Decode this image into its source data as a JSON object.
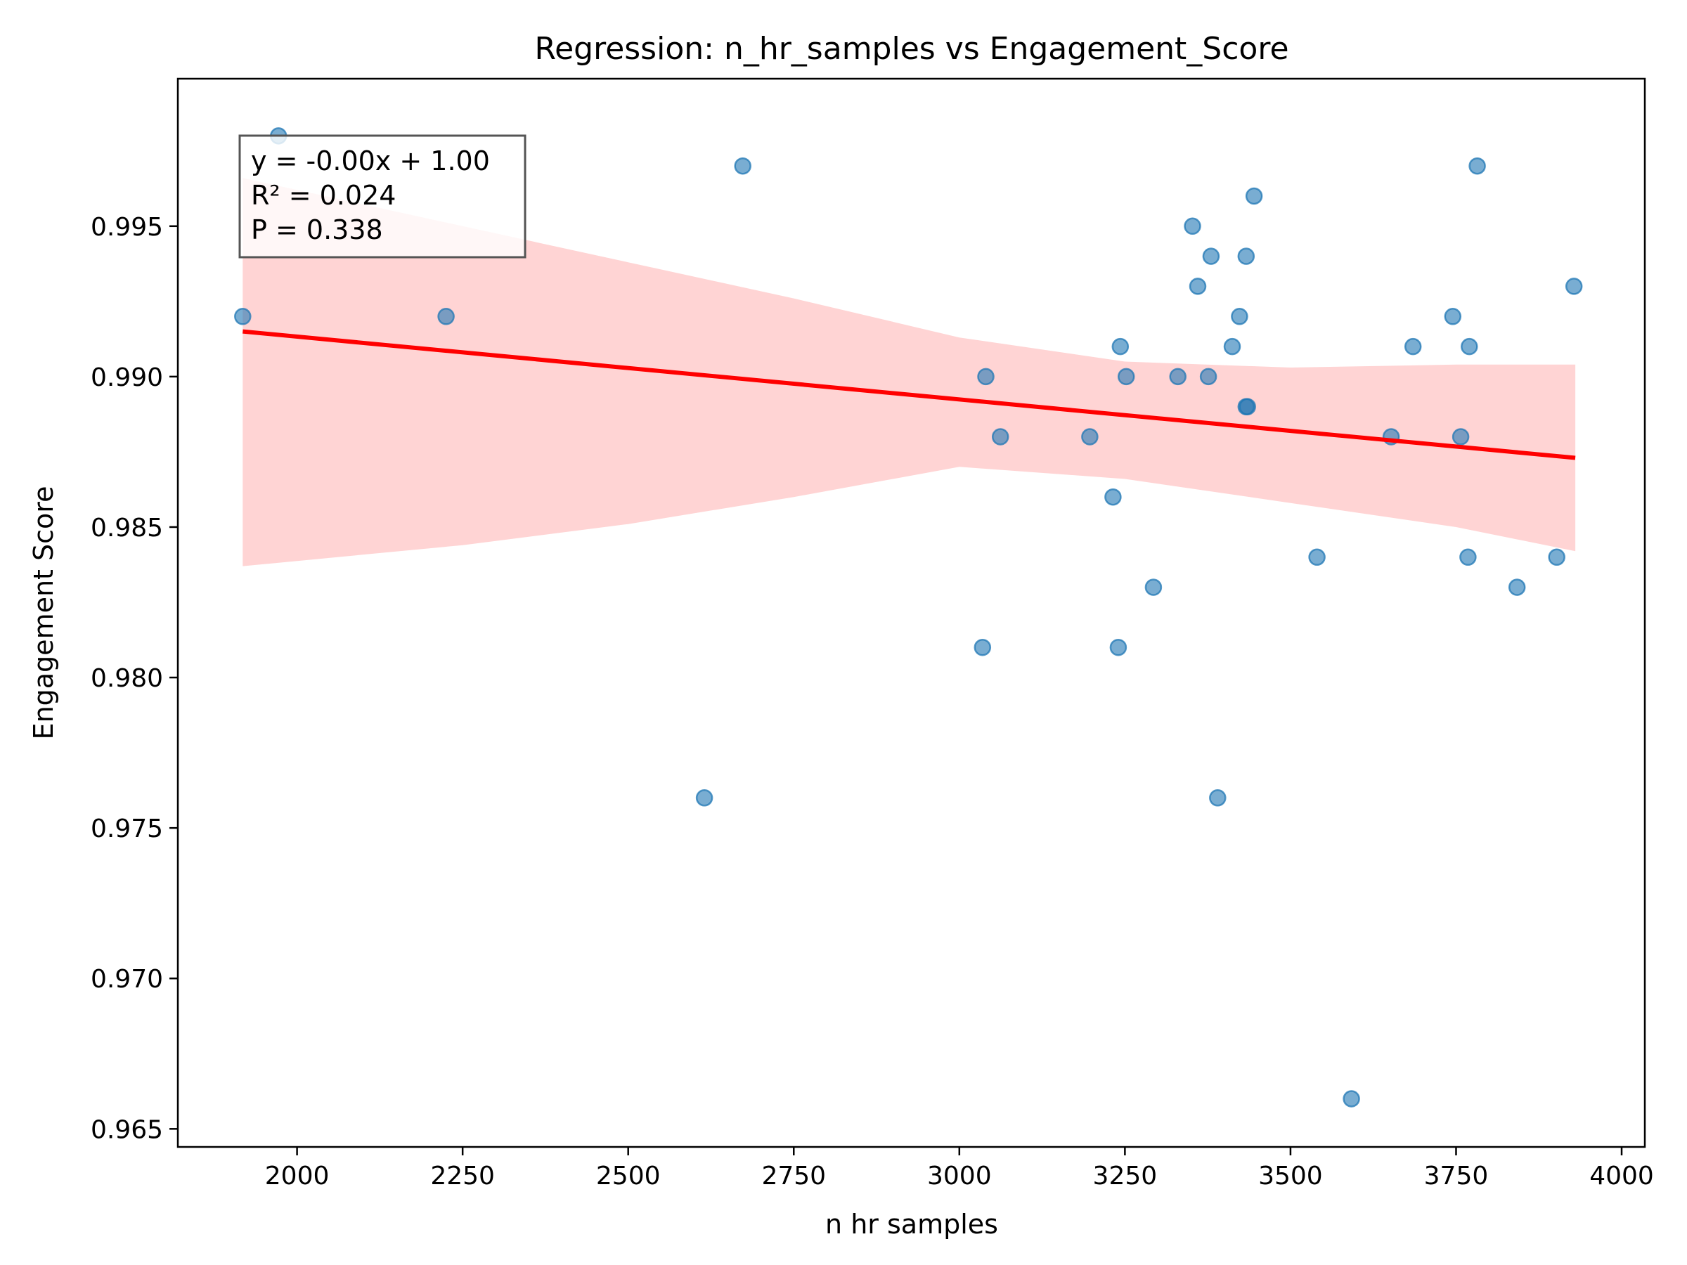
{
  "chart_data": {
    "type": "scatter",
    "title": "Regression: n_hr_samples vs Engagement_Score",
    "xlabel": "n hr samples",
    "ylabel": "Engagement Score",
    "xlim": [
      1820,
      4035
    ],
    "ylim": [
      0.9644,
      0.9999
    ],
    "xticks": [
      2000,
      2250,
      2500,
      2750,
      3000,
      3250,
      3500,
      3750,
      4000
    ],
    "xtick_labels": [
      "2000",
      "2250",
      "2500",
      "2750",
      "3000",
      "3250",
      "3500",
      "3750",
      "4000"
    ],
    "yticks": [
      0.965,
      0.97,
      0.975,
      0.98,
      0.985,
      0.99,
      0.995
    ],
    "ytick_labels": [
      "0.965",
      "0.970",
      "0.975",
      "0.980",
      "0.985",
      "0.990",
      "0.995"
    ],
    "grid": false,
    "colors": {
      "points": "#1f77b4",
      "regression_line": "#ff0000",
      "confidence_band": "#ffcccc"
    },
    "points": [
      {
        "x": 1918,
        "y": 0.992
      },
      {
        "x": 1972,
        "y": 0.998
      },
      {
        "x": 2225,
        "y": 0.992
      },
      {
        "x": 2615,
        "y": 0.976
      },
      {
        "x": 2673,
        "y": 0.997
      },
      {
        "x": 3035,
        "y": 0.981
      },
      {
        "x": 3040,
        "y": 0.99
      },
      {
        "x": 3062,
        "y": 0.988
      },
      {
        "x": 3197,
        "y": 0.988
      },
      {
        "x": 3232,
        "y": 0.986
      },
      {
        "x": 3240,
        "y": 0.981
      },
      {
        "x": 3243,
        "y": 0.991
      },
      {
        "x": 3252,
        "y": 0.99
      },
      {
        "x": 3293,
        "y": 0.983
      },
      {
        "x": 3330,
        "y": 0.99
      },
      {
        "x": 3352,
        "y": 0.995
      },
      {
        "x": 3360,
        "y": 0.993
      },
      {
        "x": 3376,
        "y": 0.99
      },
      {
        "x": 3380,
        "y": 0.994
      },
      {
        "x": 3390,
        "y": 0.976
      },
      {
        "x": 3412,
        "y": 0.991
      },
      {
        "x": 3423,
        "y": 0.992
      },
      {
        "x": 3433,
        "y": 0.994
      },
      {
        "x": 3433,
        "y": 0.989
      },
      {
        "x": 3435,
        "y": 0.989
      },
      {
        "x": 3445,
        "y": 0.996
      },
      {
        "x": 3540,
        "y": 0.984
      },
      {
        "x": 3592,
        "y": 0.966
      },
      {
        "x": 3652,
        "y": 0.988
      },
      {
        "x": 3685,
        "y": 0.991
      },
      {
        "x": 3745,
        "y": 0.992
      },
      {
        "x": 3757,
        "y": 0.988
      },
      {
        "x": 3768,
        "y": 0.984
      },
      {
        "x": 3770,
        "y": 0.991
      },
      {
        "x": 3782,
        "y": 0.997
      },
      {
        "x": 3842,
        "y": 0.983
      },
      {
        "x": 3902,
        "y": 0.984
      },
      {
        "x": 3928,
        "y": 0.993
      }
    ],
    "regression": {
      "x": [
        1918,
        3930
      ],
      "y": [
        0.9915,
        0.9873
      ]
    },
    "confidence_band": {
      "x": [
        1918,
        2250,
        2500,
        2750,
        3000,
        3250,
        3500,
        3750,
        3930
      ],
      "upper": [
        0.9966,
        0.995,
        0.9938,
        0.9926,
        0.9913,
        0.9905,
        0.9903,
        0.9904,
        0.9904
      ],
      "lower": [
        0.9837,
        0.9844,
        0.9851,
        0.986,
        0.987,
        0.9866,
        0.9858,
        0.985,
        0.9842
      ]
    },
    "annotation": {
      "lines": [
        "y = -0.00x + 1.00",
        "R² = 0.024",
        "P = 0.338"
      ],
      "placement": "top-left"
    }
  }
}
